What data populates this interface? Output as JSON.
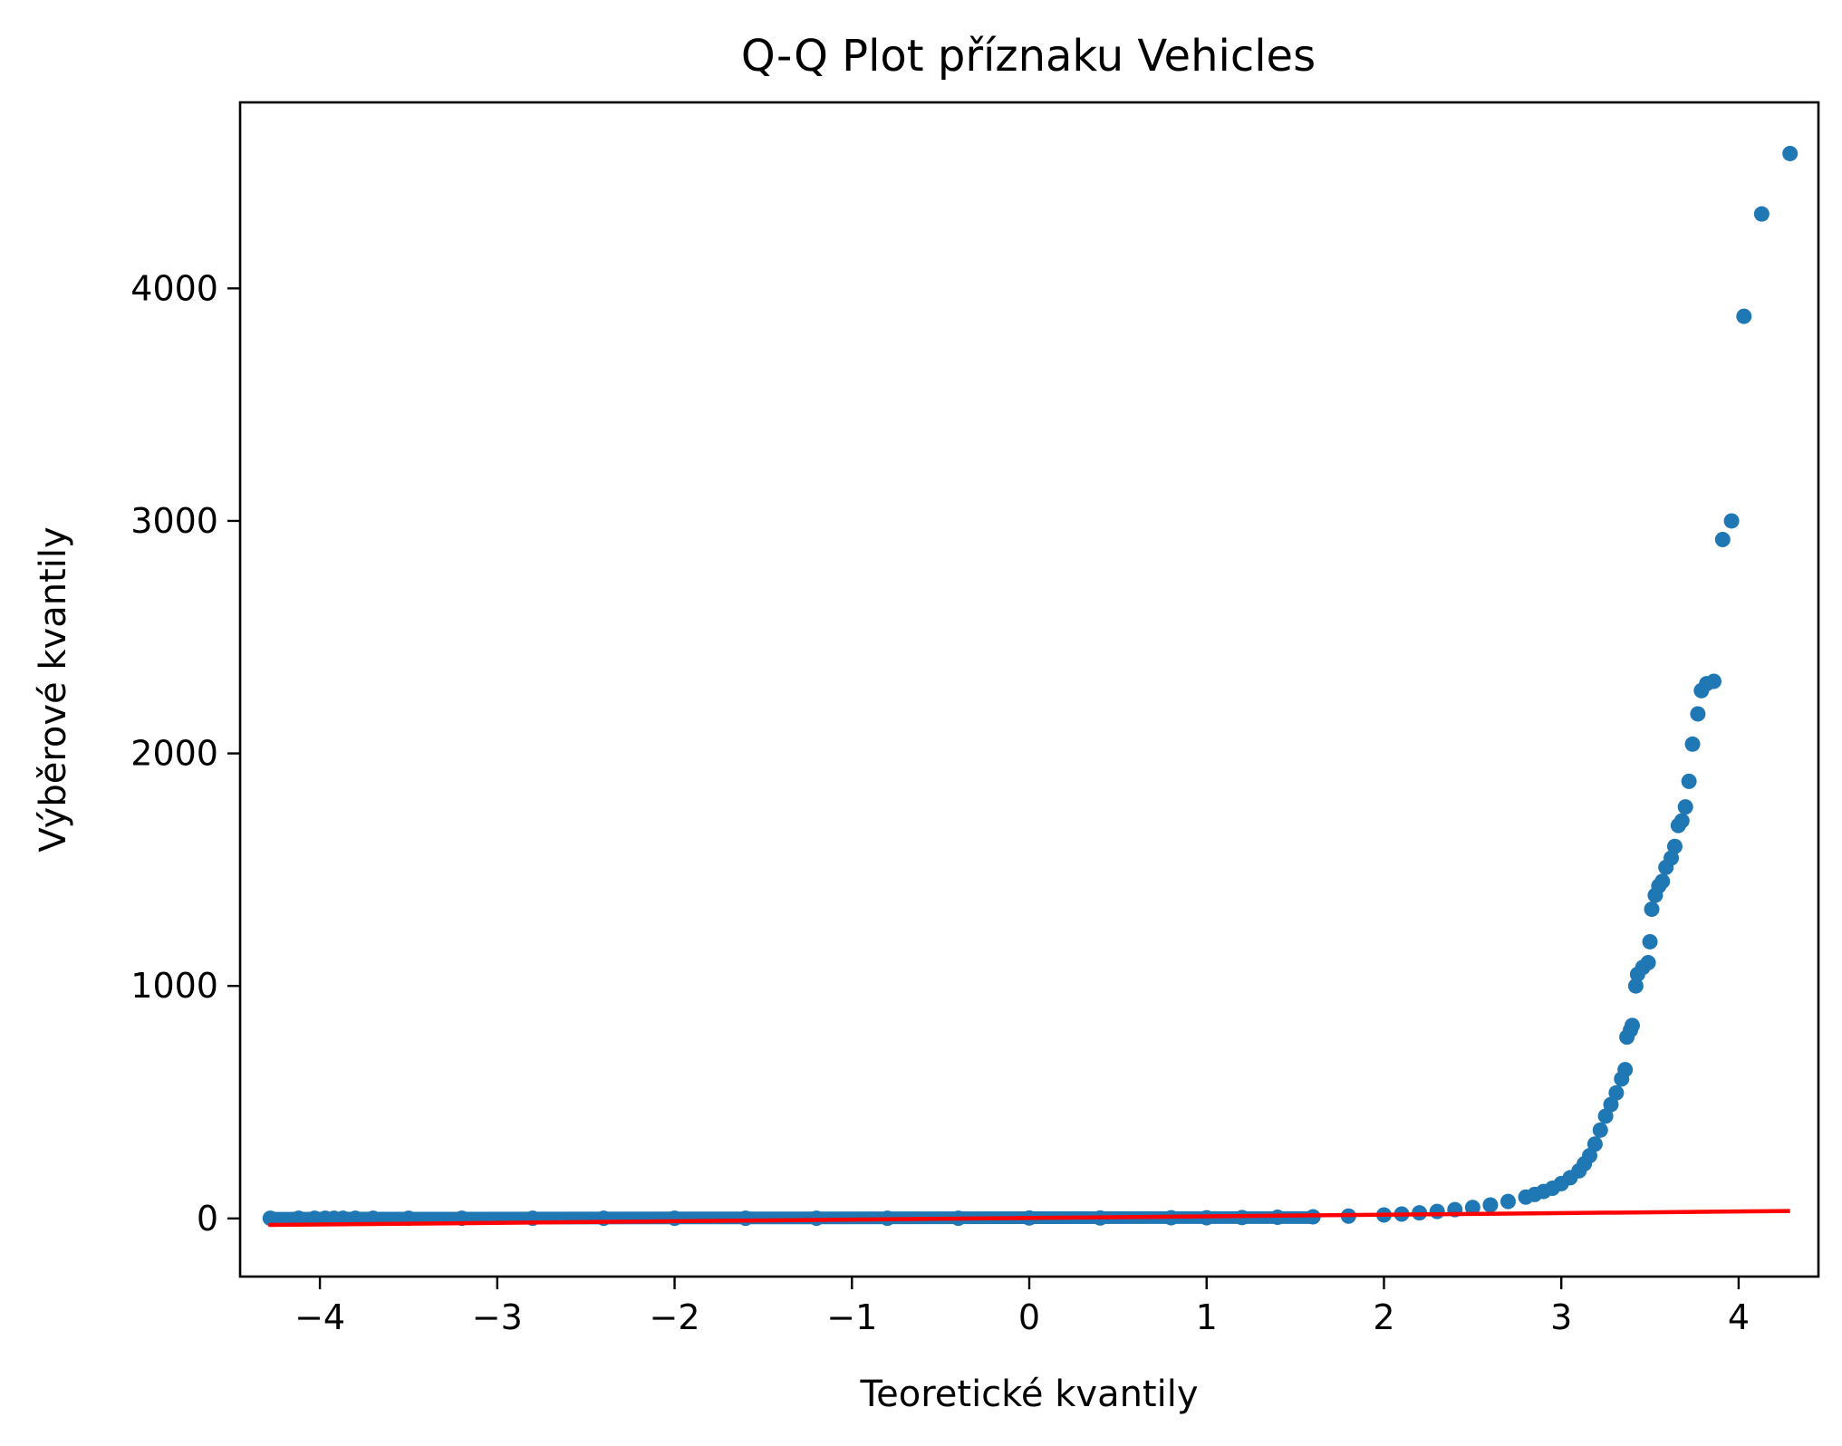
{
  "chart_data": {
    "type": "scatter",
    "title": "Q-Q Plot příznaku Vehicles",
    "xlabel": "Teoretické kvantily",
    "ylabel": "Výběrové kvantily",
    "xlim": [
      -4.45,
      4.45
    ],
    "ylim": [
      -250,
      4800
    ],
    "x_ticks": [
      -4,
      -3,
      -2,
      -1,
      0,
      1,
      2,
      3,
      4
    ],
    "x_tick_labels": [
      "−4",
      "−3",
      "−2",
      "−1",
      "0",
      "1",
      "2",
      "3",
      "4"
    ],
    "y_ticks": [
      0,
      1000,
      2000,
      3000,
      4000
    ],
    "y_tick_labels": [
      "0",
      "1000",
      "2000",
      "3000",
      "4000"
    ],
    "grid": false,
    "series": [
      {
        "kind": "points",
        "color": "#1f77b4",
        "points": [
          [
            -4.28,
            1
          ],
          [
            -4.12,
            1
          ],
          [
            -4.03,
            1
          ],
          [
            -3.97,
            1
          ],
          [
            -3.92,
            1
          ],
          [
            -3.87,
            1
          ],
          [
            -3.8,
            1
          ],
          [
            -3.7,
            1
          ],
          [
            -3.5,
            1
          ],
          [
            -3.2,
            1
          ],
          [
            -2.8,
            1
          ],
          [
            -2.4,
            1
          ],
          [
            -2.0,
            1
          ],
          [
            -1.6,
            1
          ],
          [
            -1.2,
            1
          ],
          [
            -0.8,
            1
          ],
          [
            -0.4,
            1
          ],
          [
            0.0,
            2
          ],
          [
            0.4,
            2
          ],
          [
            0.8,
            3
          ],
          [
            1.0,
            3
          ],
          [
            1.2,
            4
          ],
          [
            1.4,
            5
          ],
          [
            1.6,
            7
          ],
          [
            1.8,
            10
          ],
          [
            2.0,
            15
          ],
          [
            2.1,
            19
          ],
          [
            2.2,
            24
          ],
          [
            2.3,
            30
          ],
          [
            2.4,
            38
          ],
          [
            2.5,
            47
          ],
          [
            2.6,
            58
          ],
          [
            2.7,
            73
          ],
          [
            2.8,
            92
          ],
          [
            2.85,
            103
          ],
          [
            2.9,
            116
          ],
          [
            2.95,
            130
          ],
          [
            3.0,
            150
          ],
          [
            3.05,
            175
          ],
          [
            3.1,
            205
          ],
          [
            3.13,
            235
          ],
          [
            3.16,
            270
          ],
          [
            3.19,
            320
          ],
          [
            3.22,
            380
          ],
          [
            3.25,
            440
          ],
          [
            3.28,
            490
          ],
          [
            3.31,
            540
          ],
          [
            3.34,
            600
          ],
          [
            3.36,
            640
          ],
          [
            3.37,
            780
          ],
          [
            3.39,
            810
          ],
          [
            3.4,
            830
          ],
          [
            3.42,
            1000
          ],
          [
            3.43,
            1050
          ],
          [
            3.46,
            1080
          ],
          [
            3.49,
            1100
          ],
          [
            3.5,
            1190
          ],
          [
            3.51,
            1330
          ],
          [
            3.53,
            1390
          ],
          [
            3.55,
            1430
          ],
          [
            3.57,
            1450
          ],
          [
            3.59,
            1510
          ],
          [
            3.62,
            1550
          ],
          [
            3.64,
            1600
          ],
          [
            3.66,
            1690
          ],
          [
            3.68,
            1710
          ],
          [
            3.7,
            1770
          ],
          [
            3.72,
            1880
          ],
          [
            3.74,
            2040
          ],
          [
            3.77,
            2170
          ],
          [
            3.79,
            2270
          ],
          [
            3.82,
            2300
          ],
          [
            3.86,
            2310
          ],
          [
            3.91,
            2920
          ],
          [
            3.96,
            3000
          ],
          [
            4.03,
            3880
          ],
          [
            4.13,
            4320
          ],
          [
            4.29,
            4580
          ]
        ]
      },
      {
        "kind": "line",
        "color": "#ff0000",
        "points": [
          [
            -4.29,
            -28
          ],
          [
            4.29,
            32
          ]
        ]
      }
    ]
  }
}
